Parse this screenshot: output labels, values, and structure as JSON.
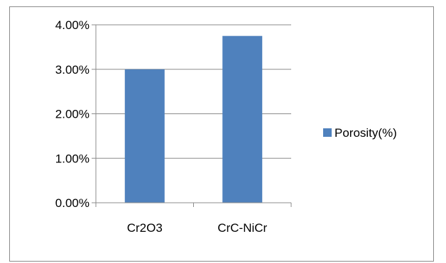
{
  "chart_data": {
    "type": "bar",
    "categories": [
      "Cr2O3",
      "CrC-NiCr"
    ],
    "series": [
      {
        "name": "Porosity(%)",
        "values": [
          3.0,
          3.75
        ],
        "color": "#4f81bd"
      }
    ],
    "ylim": [
      0,
      4
    ],
    "yticks": [
      0,
      1,
      2,
      3,
      4
    ],
    "ytick_labels": [
      "0.00%",
      "1.00%",
      "2.00%",
      "3.00%",
      "4.00%"
    ],
    "grid": true,
    "legend_position": "right",
    "title": "",
    "xlabel": "",
    "ylabel": ""
  }
}
